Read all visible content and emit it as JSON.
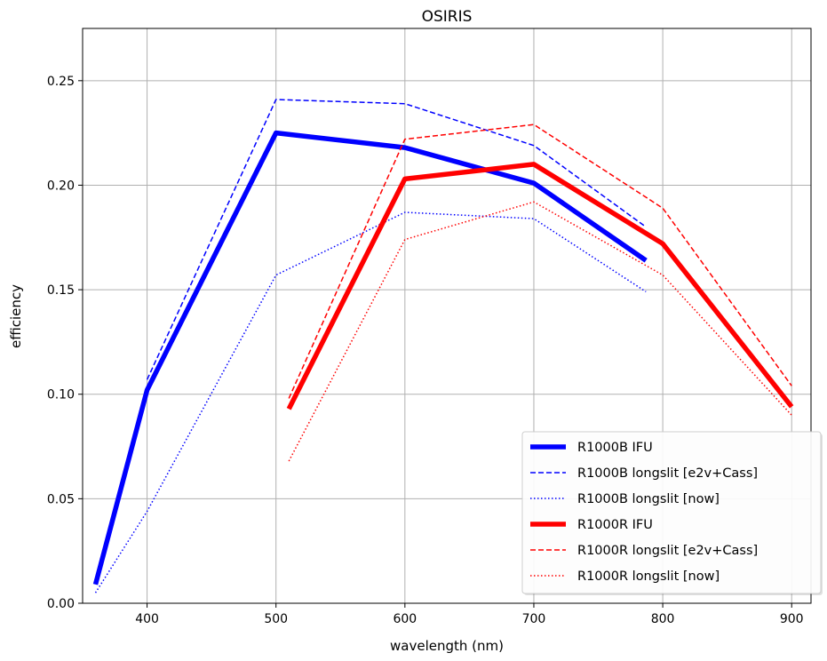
{
  "chart_data": {
    "type": "line",
    "title": "OSIRIS",
    "xlabel": "wavelength (nm)",
    "ylabel": "efficiency",
    "xlim": [
      350,
      915
    ],
    "ylim": [
      0.0,
      0.275
    ],
    "xticks": [
      400,
      500,
      600,
      700,
      800,
      900
    ],
    "xtick_labels": [
      "400",
      "500",
      "600",
      "700",
      "800",
      "900"
    ],
    "yticks": [
      0.0,
      0.05,
      0.1,
      0.15,
      0.2,
      0.25
    ],
    "ytick_labels": [
      "0.00",
      "0.05",
      "0.10",
      "0.15",
      "0.20",
      "0.25"
    ],
    "grid": true,
    "legend_position": "lower-right",
    "series": [
      {
        "name": "R1000B IFU",
        "color": "#0000ff",
        "style": "solid",
        "thick": true,
        "x": [
          360,
          400,
          500,
          600,
          700,
          787
        ],
        "y": [
          0.009,
          0.102,
          0.225,
          0.218,
          0.201,
          0.164
        ]
      },
      {
        "name": "R1000B longslit [e2v+Cass]",
        "color": "#0000ff",
        "style": "dashed",
        "thick": false,
        "x": [
          400,
          500,
          600,
          700,
          787
        ],
        "y": [
          0.107,
          0.241,
          0.239,
          0.219,
          0.18
        ]
      },
      {
        "name": "R1000B longslit [now]",
        "color": "#0000ff",
        "style": "dotted",
        "thick": false,
        "x": [
          360,
          400,
          500,
          600,
          700,
          787
        ],
        "y": [
          0.005,
          0.044,
          0.157,
          0.187,
          0.184,
          0.149
        ]
      },
      {
        "name": "R1000R IFU",
        "color": "#ff0000",
        "style": "solid",
        "thick": true,
        "x": [
          510,
          600,
          700,
          800,
          900
        ],
        "y": [
          0.093,
          0.203,
          0.21,
          0.172,
          0.094
        ]
      },
      {
        "name": "R1000R longslit [e2v+Cass]",
        "color": "#ff0000",
        "style": "dashed",
        "thick": false,
        "x": [
          510,
          600,
          700,
          800,
          900
        ],
        "y": [
          0.098,
          0.222,
          0.229,
          0.189,
          0.104
        ]
      },
      {
        "name": "R1000R longslit [now]",
        "color": "#ff0000",
        "style": "dotted",
        "thick": false,
        "x": [
          510,
          600,
          700,
          800,
          900
        ],
        "y": [
          0.068,
          0.174,
          0.192,
          0.157,
          0.09
        ]
      }
    ]
  }
}
